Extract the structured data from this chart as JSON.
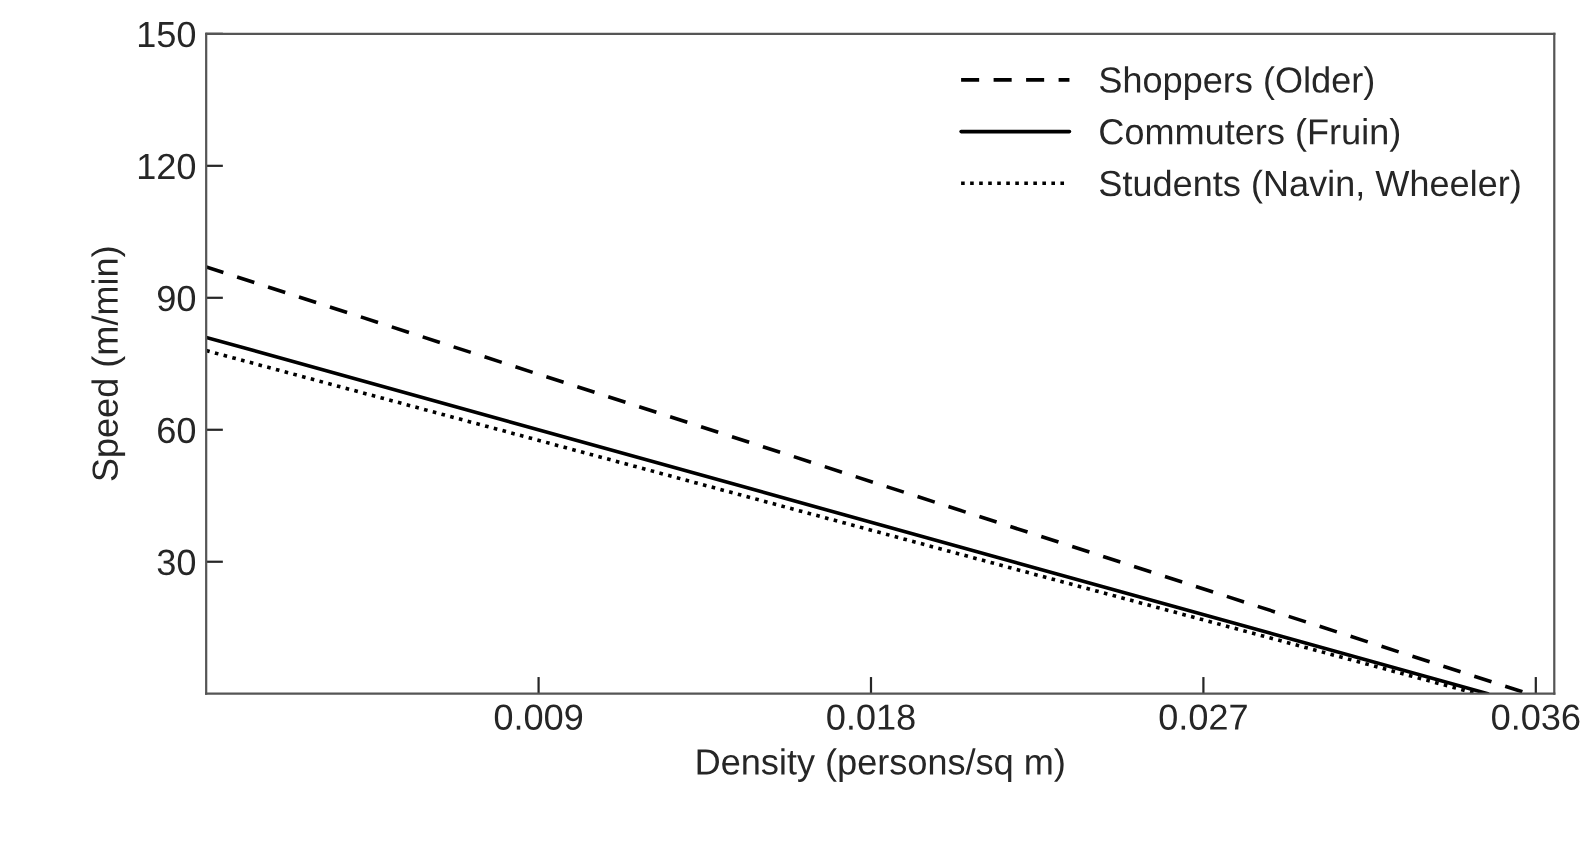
{
  "chart_data": {
    "type": "line",
    "xlabel": "Density (persons/sq m)",
    "ylabel": "Speed (m/min)",
    "xlim": [
      0,
      0.0365
    ],
    "ylim": [
      0,
      150
    ],
    "xticks": [
      0.009,
      0.018,
      0.027,
      0.036
    ],
    "yticks": [
      30,
      60,
      90,
      120,
      150
    ],
    "grid": false,
    "legend": "top right",
    "marker": "none",
    "series": [
      {
        "name": "Shoppers (Older)",
        "color": "#000000",
        "line_style": "dashed",
        "x": [
          0,
          0.0358
        ],
        "values": [
          97,
          0
        ]
      },
      {
        "name": "Commuters (Fruin)",
        "color": "#000000",
        "line_style": "solid",
        "x": [
          0,
          0.0347
        ],
        "values": [
          81,
          0
        ]
      },
      {
        "name": "Students (Navin, Wheeler)",
        "color": "#000000",
        "line_style": "dotted",
        "x": [
          0,
          0.0344
        ],
        "values": [
          78,
          0
        ]
      }
    ]
  }
}
